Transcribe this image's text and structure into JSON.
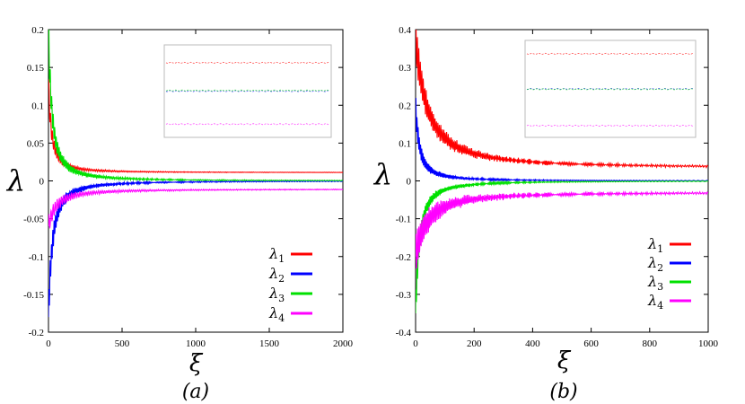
{
  "chart_data": [
    {
      "type": "line",
      "panel_label": "(a)",
      "xlabel": "ξ",
      "ylabel": "λ",
      "xlim": [
        0,
        2000
      ],
      "ylim": [
        -0.2,
        0.2
      ],
      "x_ticks": [
        "0",
        "500",
        "1000",
        "1500",
        "2000"
      ],
      "y_ticks": [
        "-0.2",
        "-0.15",
        "-0.1",
        "-0.05",
        "0",
        "0.05",
        "0.1",
        "0.15",
        "0.2"
      ],
      "legend": {
        "position": "bottom-right"
      },
      "inset": {
        "position": "top-right",
        "grid": false
      },
      "series": [
        {
          "name": "λ1",
          "label_base": "λ",
          "label_sub": "1",
          "color": "#ff0000",
          "final_value": 0.011,
          "start_value": 0.13,
          "osc_decay": 30,
          "osc_period": 12,
          "noise_amp": 0.02,
          "inset_level": 0.163
        },
        {
          "name": "λ2",
          "label_base": "λ",
          "label_sub": "2",
          "color": "#0000ff",
          "final_value": 0.0,
          "start_value": -0.18,
          "osc_decay": 40,
          "osc_period": 9,
          "noise_amp": 0.03,
          "inset_level": 0.12
        },
        {
          "name": "λ3",
          "label_base": "λ",
          "label_sub": "3",
          "color": "#00e000",
          "final_value": 0.0,
          "start_value": 0.2,
          "osc_decay": 35,
          "osc_period": 10,
          "noise_amp": 0.03,
          "inset_level": 0.121
        },
        {
          "name": "λ4",
          "label_base": "λ",
          "label_sub": "4",
          "color": "#ff00ff",
          "final_value": -0.011,
          "start_value": -0.06,
          "osc_decay": 80,
          "osc_period": 14,
          "noise_amp": 0.015,
          "inset_level": 0.07
        }
      ]
    },
    {
      "type": "line",
      "panel_label": "(b)",
      "xlabel": "ξ",
      "ylabel": "λ",
      "xlim": [
        0,
        1000
      ],
      "ylim": [
        -0.4,
        0.4
      ],
      "x_ticks": [
        "0",
        "200",
        "400",
        "600",
        "800",
        "1000"
      ],
      "y_ticks": [
        "-0.4",
        "-0.3",
        "-0.2",
        "-0.1",
        "0",
        "0.1",
        "0.2",
        "0.3",
        "0.4"
      ],
      "legend": {
        "position": "bottom-right"
      },
      "inset": {
        "position": "top-right",
        "grid": false
      },
      "series": [
        {
          "name": "λ1",
          "label_base": "λ",
          "label_sub": "1",
          "color": "#ff0000",
          "final_value": 0.034,
          "start_value": 0.38,
          "osc_decay": 60,
          "osc_period": 5,
          "noise_amp": 0.06,
          "inset_level": 0.34
        },
        {
          "name": "λ2",
          "label_base": "λ",
          "label_sub": "2",
          "color": "#0000ff",
          "final_value": 0.0,
          "start_value": 0.2,
          "osc_decay": 20,
          "osc_period": 4,
          "noise_amp": 0.04,
          "inset_level": 0.235
        },
        {
          "name": "λ3",
          "label_base": "λ",
          "label_sub": "3",
          "color": "#00e000",
          "final_value": 0.0,
          "start_value": -0.35,
          "osc_decay": 20,
          "osc_period": 4,
          "noise_amp": 0.05,
          "inset_level": 0.234
        },
        {
          "name": "λ4",
          "label_base": "λ",
          "label_sub": "4",
          "color": "#ff00ff",
          "final_value": -0.03,
          "start_value": -0.2,
          "osc_decay": 60,
          "osc_period": 5,
          "noise_amp": 0.06,
          "inset_level": 0.125
        }
      ]
    }
  ]
}
